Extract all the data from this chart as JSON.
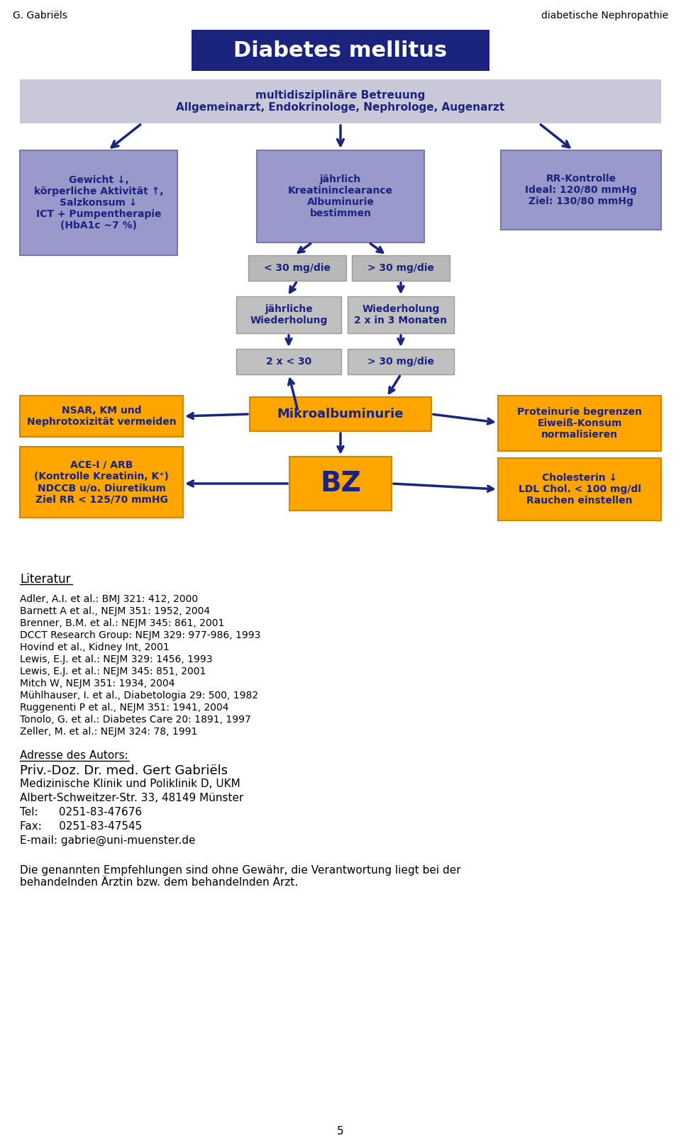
{
  "header_left": "G. Gabriëls",
  "header_right": "diabetische Nephropathie",
  "title_box_text": "Diabetes mellitus",
  "title_box_color": "#1a237e",
  "title_text_color": "#ffffff",
  "subtitle_band_text": "multidisziplinäre Betreuung\nAllgemeinarzt, Endokrinologe, Nephrologe, Augenarzt",
  "subtitle_band_color": "#c8c8d8",
  "subtitle_text_color": "#1a237e",
  "box_left_color": "#9999cc",
  "box_left_text": "Gewicht ↓,\nkörperliche Aktivität ↑,\nSalzkonsum ↓\nICT + Pumpentherapie\n(HbA1c ~7 %)",
  "box_center_color": "#9999cc",
  "box_center_text": "jährlich\nKreatininclearance\nAlbuminurie\nbestimmen",
  "box_right_color": "#9999cc",
  "box_right_text": "RR-Kontrolle\nIdeal: 120/80 mmHg\nZiel: 130/80 mmHg",
  "box_lt30_color": "#b8b8b8",
  "box_lt30_text": "< 30 mg/die",
  "box_gt30_color": "#b8b8b8",
  "box_gt30_text": "> 30 mg/die",
  "box_jaehrl_color": "#c0c0c0",
  "box_jaehrl_text": "jährliche\nWiederholung",
  "box_wieder_color": "#c0c0c0",
  "box_wieder_text": "Wiederholung\n2 x in 3 Monaten",
  "box_2x30_color": "#c0c0c0",
  "box_2x30_text": "2 x < 30",
  "box_gt30b_color": "#c0c0c0",
  "box_gt30b_text": "> 30 mg/die",
  "box_mikro_color": "#ffa500",
  "box_mikro_text": "Mikroalbuminurie",
  "box_bz_color": "#ffa500",
  "box_bz_text": "BZ",
  "box_nsar_color": "#ffa500",
  "box_nsar_text": "NSAR, KM und\nNephrotoxizität vermeiden",
  "box_ace_color": "#ffa500",
  "box_ace_text": "ACE-I / ARB\n(Kontrolle Kreatinin, K⁺)\nNDCCB u/o. Diuretikum\nZiel RR < 125/70 mmHG",
  "box_prot_color": "#ffa500",
  "box_prot_text": "Proteinurie begrenzen\nEiweiß-Konsum\nnormalisieren",
  "box_chol_color": "#ffa500",
  "box_chol_text": "Cholesterin ↓\nLDL Chol. < 100 mg/dl\nRauchen einstellen",
  "arrow_color": "#1a237e",
  "text_dark_blue": "#1a237e",
  "literatur_title": "Literatur",
  "literatur_refs": [
    "Adler, A.I. et al.: BMJ 321: 412, 2000",
    "Barnett A et al., NEJM 351: 1952, 2004",
    "Brenner, B.M. et al.: NEJM 345: 861, 2001",
    "DCCT Research Group: NEJM 329: 977-986, 1993",
    "Hovind et al., Kidney Int, 2001",
    "Lewis, E.J. et al.: NEJM 329: 1456, 1993",
    "Lewis, E.J. et al.: NEJM 345: 851, 2001",
    "Mitch W, NEJM 351: 1934, 2004",
    "Mühlhauser, I. et al., Diabetologia 29: 500, 1982",
    "Ruggenenti P et al., NEJM 351: 1941, 2004",
    "Tonolo, G. et al.: Diabetes Care 20: 1891, 1997",
    "Zeller, M. et al.: NEJM 324: 78, 1991"
  ],
  "adresse_title": "Adresse des Autors:",
  "adresse_lines": [
    "Priv.-Doz. Dr. med. Gert Gabriëls",
    "Medizinische Klinik und Poliklinik D, UKM",
    "Albert-Schweitzer-Str. 33, 48149 Münster",
    "Tel:      0251-83-47676",
    "Fax:     0251-83-47545",
    "E-mail: gabrie@uni-muenster.de"
  ],
  "disclaimer": "Die genannten Empfehlungen sind ohne Gewähr, die Verantwortung liegt bei der\nbehandelnden Ärztin bzw. dem behandelnden Arzt.",
  "page_number": "5",
  "bg_color": "#ffffff"
}
